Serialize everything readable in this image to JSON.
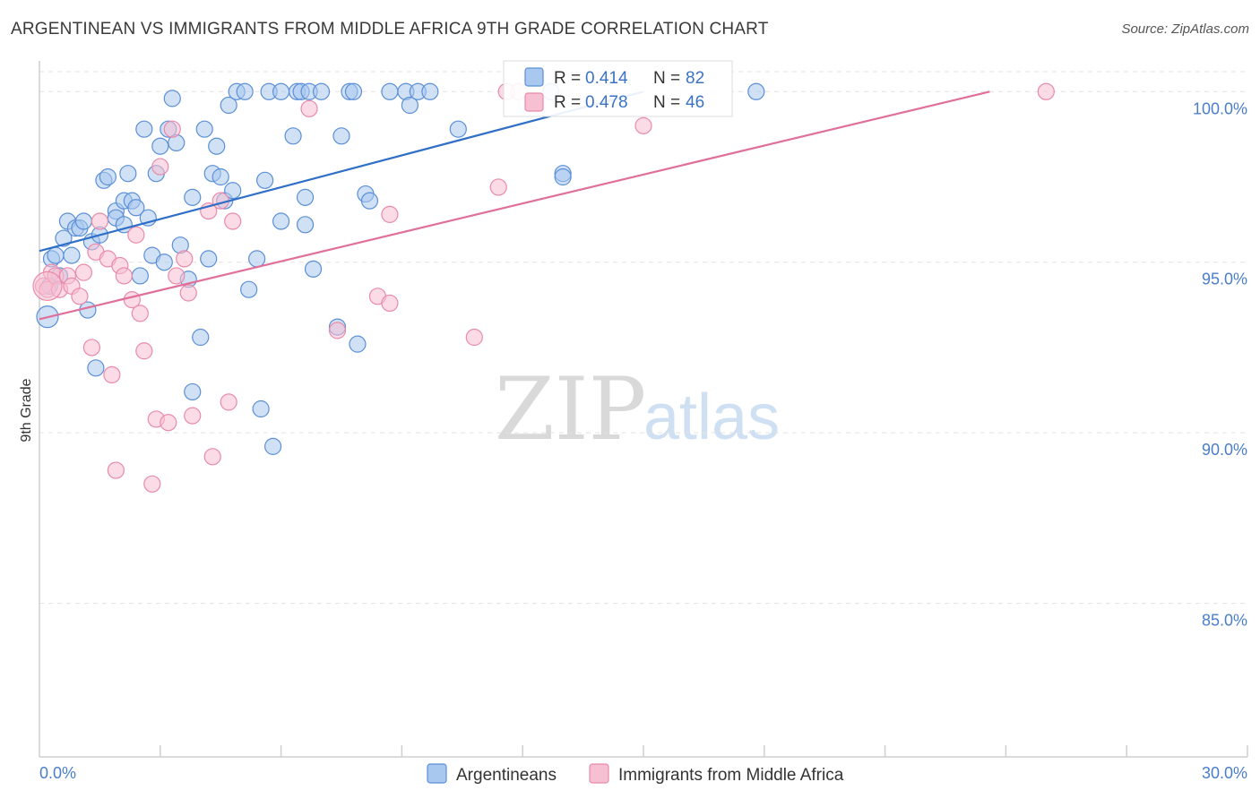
{
  "title": "ARGENTINEAN VS IMMIGRANTS FROM MIDDLE AFRICA 9TH GRADE CORRELATION CHART",
  "source": "Source: ZipAtlas.com",
  "watermark": {
    "zip": "ZIP",
    "atlas": "atlas"
  },
  "colors": {
    "blue_fill": "#a9c8ef",
    "blue_stroke": "#5b8fd6",
    "blue_line": "#2f6fc7",
    "pink_fill": "#f7bfd2",
    "pink_stroke": "#e98aa9",
    "pink_line": "#e0709a",
    "tick_text": "#4a7ec9",
    "grid": "#e2e2e2"
  },
  "legend": {
    "row1": {
      "r_label": "R = ",
      "r_value": "0.414",
      "n_label": "N = ",
      "n_value": "82"
    },
    "row2": {
      "r_label": "R = ",
      "r_value": "0.478",
      "n_label": "N = ",
      "n_value": "46"
    }
  },
  "chart_data": {
    "type": "scatter",
    "title": "ARGENTINEAN VS IMMIGRANTS FROM MIDDLE AFRICA 9TH GRADE CORRELATION CHART",
    "xlabel": "",
    "ylabel": "9th Grade",
    "xlim": [
      0,
      30
    ],
    "ylim": [
      80.5,
      100.9
    ],
    "x_tick_labels": [
      "0.0%",
      "30.0%"
    ],
    "y_ticks": [
      85,
      90,
      95,
      100
    ],
    "y_tick_labels": [
      "85.0%",
      "90.0%",
      "95.0%",
      "100.0%"
    ],
    "grid": true,
    "series": [
      {
        "name": "Argentineans",
        "color": "blue",
        "R": 0.414,
        "N": 82,
        "trend": {
          "x1": 0.0,
          "y1": 95.33,
          "x2": 15.0,
          "y2": 100.0
        },
        "points": [
          [
            0.2,
            93.4
          ],
          [
            0.3,
            95.1
          ],
          [
            0.4,
            95.2
          ],
          [
            0.5,
            94.6
          ],
          [
            0.6,
            95.7
          ],
          [
            0.7,
            96.2
          ],
          [
            0.8,
            95.2
          ],
          [
            0.9,
            96.0
          ],
          [
            1.0,
            96.0
          ],
          [
            1.1,
            96.2
          ],
          [
            1.2,
            93.6
          ],
          [
            1.3,
            95.6
          ],
          [
            1.4,
            91.9
          ],
          [
            1.5,
            95.8
          ],
          [
            1.6,
            97.4
          ],
          [
            1.7,
            97.5
          ],
          [
            1.9,
            96.5
          ],
          [
            1.9,
            96.3
          ],
          [
            2.1,
            96.1
          ],
          [
            2.1,
            96.8
          ],
          [
            2.2,
            97.6
          ],
          [
            2.3,
            96.8
          ],
          [
            2.4,
            96.6
          ],
          [
            2.5,
            94.6
          ],
          [
            2.6,
            98.9
          ],
          [
            2.7,
            96.3
          ],
          [
            2.8,
            95.2
          ],
          [
            2.9,
            97.6
          ],
          [
            3.0,
            98.4
          ],
          [
            3.1,
            95.0
          ],
          [
            3.2,
            98.9
          ],
          [
            3.3,
            99.8
          ],
          [
            3.4,
            98.5
          ],
          [
            3.5,
            95.5
          ],
          [
            3.7,
            94.5
          ],
          [
            3.8,
            91.2
          ],
          [
            3.8,
            96.9
          ],
          [
            4.0,
            92.8
          ],
          [
            4.1,
            98.9
          ],
          [
            4.2,
            95.1
          ],
          [
            4.3,
            97.6
          ],
          [
            4.4,
            98.4
          ],
          [
            4.5,
            97.5
          ],
          [
            4.6,
            96.8
          ],
          [
            4.7,
            99.6
          ],
          [
            4.8,
            97.1
          ],
          [
            4.9,
            100.0
          ],
          [
            5.1,
            100.0
          ],
          [
            5.2,
            94.2
          ],
          [
            5.4,
            95.1
          ],
          [
            5.5,
            90.7
          ],
          [
            5.6,
            97.4
          ],
          [
            5.7,
            100.0
          ],
          [
            5.8,
            89.6
          ],
          [
            6.0,
            100.0
          ],
          [
            6.0,
            96.2
          ],
          [
            6.3,
            98.7
          ],
          [
            6.4,
            100.0
          ],
          [
            6.5,
            100.0
          ],
          [
            6.6,
            96.9
          ],
          [
            6.6,
            96.1
          ],
          [
            6.7,
            100.0
          ],
          [
            6.8,
            94.8
          ],
          [
            7.0,
            100.0
          ],
          [
            7.4,
            93.1
          ],
          [
            7.5,
            98.7
          ],
          [
            7.7,
            100.0
          ],
          [
            7.8,
            100.0
          ],
          [
            7.9,
            92.6
          ],
          [
            8.1,
            97.0
          ],
          [
            8.2,
            96.8
          ],
          [
            8.7,
            100.0
          ],
          [
            9.1,
            100.0
          ],
          [
            9.2,
            99.6
          ],
          [
            9.4,
            100.0
          ],
          [
            9.7,
            100.0
          ],
          [
            10.4,
            98.9
          ],
          [
            12.7,
            100.0
          ],
          [
            13.0,
            97.6
          ],
          [
            13.0,
            97.5
          ],
          [
            17.8,
            100.0
          ],
          [
            0.25,
            94.3
          ]
        ]
      },
      {
        "name": "Immigrants from Middle Africa",
        "color": "pink",
        "R": 0.478,
        "N": 46,
        "trend": {
          "x1": 0.0,
          "y1": 93.33,
          "x2": 23.6,
          "y2": 100.0
        },
        "points": [
          [
            0.1,
            94.3
          ],
          [
            0.2,
            94.2
          ],
          [
            0.3,
            94.7
          ],
          [
            0.4,
            94.6
          ],
          [
            0.5,
            94.2
          ],
          [
            0.7,
            94.6
          ],
          [
            0.8,
            94.3
          ],
          [
            1.0,
            94.0
          ],
          [
            1.1,
            94.7
          ],
          [
            1.3,
            92.5
          ],
          [
            1.4,
            95.3
          ],
          [
            1.5,
            96.2
          ],
          [
            1.7,
            95.1
          ],
          [
            1.8,
            91.7
          ],
          [
            1.9,
            88.9
          ],
          [
            2.0,
            94.9
          ],
          [
            2.1,
            94.6
          ],
          [
            2.3,
            93.9
          ],
          [
            2.4,
            95.8
          ],
          [
            2.5,
            93.5
          ],
          [
            2.6,
            92.4
          ],
          [
            2.8,
            88.5
          ],
          [
            2.9,
            90.4
          ],
          [
            3.0,
            97.8
          ],
          [
            3.2,
            90.3
          ],
          [
            3.3,
            98.9
          ],
          [
            3.4,
            94.6
          ],
          [
            3.6,
            95.1
          ],
          [
            3.7,
            94.1
          ],
          [
            3.8,
            90.5
          ],
          [
            4.2,
            96.5
          ],
          [
            4.3,
            89.3
          ],
          [
            4.5,
            96.8
          ],
          [
            4.7,
            90.9
          ],
          [
            4.8,
            96.2
          ],
          [
            6.7,
            99.5
          ],
          [
            7.4,
            93.0
          ],
          [
            8.4,
            94.0
          ],
          [
            8.7,
            96.4
          ],
          [
            8.7,
            93.8
          ],
          [
            10.8,
            92.8
          ],
          [
            11.4,
            97.2
          ],
          [
            11.6,
            100.0
          ],
          [
            11.9,
            100.0
          ],
          [
            25.0,
            100.0
          ],
          [
            15.0,
            99.0
          ]
        ]
      }
    ]
  },
  "bottom_legend": {
    "series1": "Argentineans",
    "series2": "Immigrants from Middle Africa"
  }
}
